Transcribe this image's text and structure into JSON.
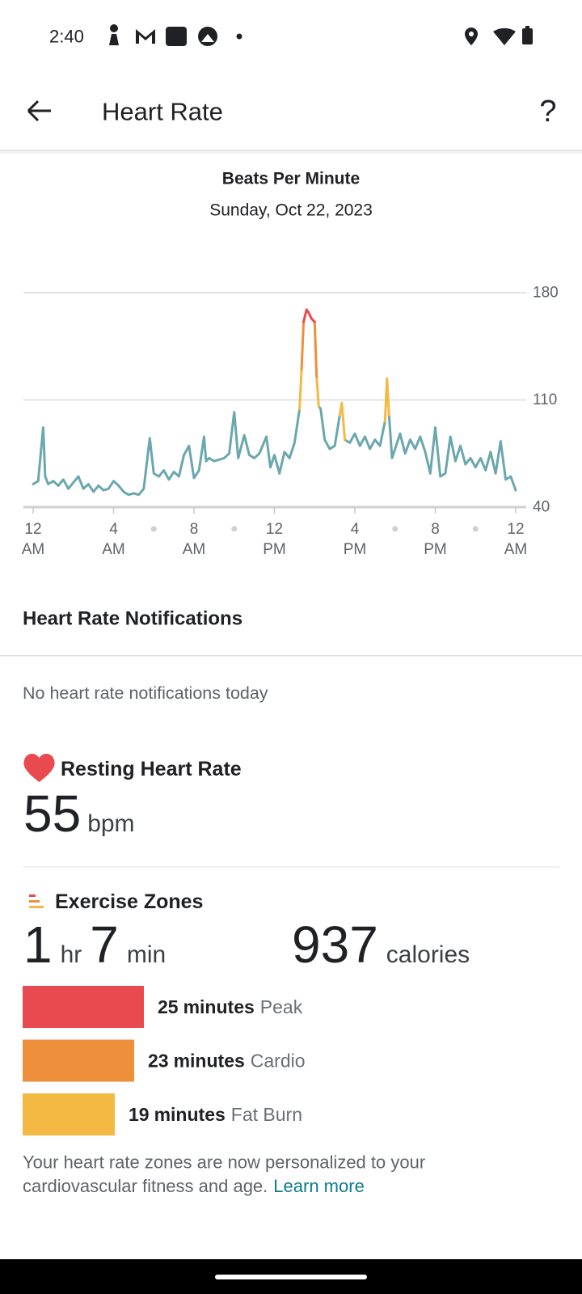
{
  "status_bar": {
    "time": "2:40"
  },
  "app_bar": {
    "title": "Heart Rate",
    "help": "?"
  },
  "chart_data": {
    "type": "line",
    "title": "Beats Per Minute",
    "subtitle": "Sunday, Oct 22, 2023",
    "x": [
      0,
      0.25,
      0.5,
      0.6,
      0.75,
      1,
      1.25,
      1.5,
      1.75,
      2,
      2.25,
      2.5,
      2.75,
      3,
      3.25,
      3.5,
      3.75,
      4,
      4.25,
      4.5,
      4.75,
      5,
      5.25,
      5.5,
      5.8,
      6,
      6.25,
      6.5,
      6.75,
      7,
      7.25,
      7.5,
      7.75,
      8,
      8.25,
      8.5,
      8.6,
      8.75,
      9,
      9.25,
      9.5,
      9.75,
      10,
      10.2,
      10.5,
      10.75,
      11,
      11.25,
      11.6,
      11.8,
      12,
      12.25,
      12.5,
      12.75,
      13,
      13.25,
      13.35,
      13.45,
      13.6,
      13.7,
      13.85,
      14,
      14.1,
      14.2,
      14.3,
      14.5,
      14.75,
      15,
      15.25,
      15.35,
      15.5,
      15.75,
      16,
      16.25,
      16.5,
      16.75,
      17,
      17.25,
      17.5,
      17.6,
      17.7,
      17.85,
      18,
      18.25,
      18.5,
      18.75,
      19,
      19.25,
      19.5,
      19.75,
      20,
      20.25,
      20.5,
      20.75,
      21,
      21.25,
      21.5,
      21.75,
      22,
      22.25,
      22.5,
      22.75,
      23,
      23.25,
      23.5,
      23.75,
      24
    ],
    "series": [
      {
        "color": "#6aa7ae",
        "values": [
          55,
          57,
          92,
          60,
          55,
          57,
          54,
          58,
          52,
          56,
          60,
          52,
          55,
          50,
          54,
          51,
          52,
          57,
          54,
          50,
          48,
          49,
          48,
          52,
          85,
          62,
          60,
          64,
          58,
          63,
          60,
          74,
          80,
          59,
          64,
          86,
          70,
          72,
          70,
          71,
          72,
          75,
          102,
          72,
          87,
          74,
          72,
          75,
          86,
          66,
          74,
          62,
          76,
          72,
          82,
          104,
          null,
          null,
          null,
          null,
          null,
          null,
          null,
          106,
          104,
          84,
          78,
          80,
          100,
          null,
          84,
          82,
          88,
          80,
          86,
          78,
          84,
          80,
          96,
          null,
          100,
          72,
          78,
          88,
          75,
          84,
          78,
          86,
          76,
          62,
          92,
          60,
          62,
          86,
          70,
          80,
          68,
          72,
          66,
          72,
          64,
          76,
          62,
          83,
          58,
          60,
          51
        ]
      },
      {
        "color": "#f4b942",
        "values": [
          null,
          null,
          null,
          null,
          null,
          null,
          null,
          null,
          null,
          null,
          null,
          null,
          null,
          null,
          null,
          null,
          null,
          null,
          null,
          null,
          null,
          null,
          null,
          null,
          null,
          null,
          null,
          null,
          null,
          null,
          null,
          null,
          null,
          null,
          null,
          null,
          null,
          null,
          null,
          null,
          null,
          null,
          null,
          null,
          null,
          null,
          null,
          null,
          null,
          null,
          null,
          null,
          null,
          null,
          null,
          104,
          130,
          null,
          null,
          null,
          null,
          null,
          125,
          106,
          null,
          null,
          null,
          null,
          100,
          108,
          84,
          null,
          null,
          null,
          null,
          null,
          null,
          null,
          96,
          124,
          100,
          null,
          null,
          null,
          null,
          null,
          null,
          null,
          null,
          null,
          null,
          null,
          null,
          null,
          null,
          null,
          null,
          null,
          null,
          null,
          null,
          null,
          null,
          null,
          null,
          null,
          null
        ]
      },
      {
        "color": "#ee8f3c",
        "values": [
          null,
          null,
          null,
          null,
          null,
          null,
          null,
          null,
          null,
          null,
          null,
          null,
          null,
          null,
          null,
          null,
          null,
          null,
          null,
          null,
          null,
          null,
          null,
          null,
          null,
          null,
          null,
          null,
          null,
          null,
          null,
          null,
          null,
          null,
          null,
          null,
          null,
          null,
          null,
          null,
          null,
          null,
          null,
          null,
          null,
          null,
          null,
          null,
          null,
          null,
          null,
          null,
          null,
          null,
          null,
          null,
          130,
          161,
          null,
          null,
          null,
          161,
          125,
          null,
          null,
          null,
          null,
          null,
          null,
          null,
          null,
          null,
          null,
          null,
          null,
          null,
          null,
          null,
          null,
          null,
          null,
          null,
          null,
          null,
          null,
          null,
          null,
          null,
          null,
          null,
          null,
          null,
          null,
          null,
          null,
          null,
          null,
          null,
          null,
          null,
          null,
          null,
          null,
          null,
          null,
          null,
          null
        ]
      },
      {
        "color": "#e84a50",
        "values": [
          null,
          null,
          null,
          null,
          null,
          null,
          null,
          null,
          null,
          null,
          null,
          null,
          null,
          null,
          null,
          null,
          null,
          null,
          null,
          null,
          null,
          null,
          null,
          null,
          null,
          null,
          null,
          null,
          null,
          null,
          null,
          null,
          null,
          null,
          null,
          null,
          null,
          null,
          null,
          null,
          null,
          null,
          null,
          null,
          null,
          null,
          null,
          null,
          null,
          null,
          null,
          null,
          null,
          null,
          null,
          null,
          null,
          161,
          169,
          167,
          163,
          161,
          null,
          null,
          null,
          null,
          null,
          null,
          null,
          null,
          null,
          null,
          null,
          null,
          null,
          null,
          null,
          null,
          null,
          null,
          null,
          null,
          null,
          null,
          null,
          null,
          null,
          null,
          null,
          null,
          null,
          null,
          null,
          null,
          null,
          null,
          null,
          null,
          null,
          null,
          null,
          null,
          null,
          null,
          null,
          null,
          null
        ]
      }
    ],
    "xlim": [
      0,
      24
    ],
    "xticks": [
      {
        "value": 0,
        "label": "12 AM"
      },
      {
        "value": 4,
        "label": "4 AM"
      },
      {
        "value": 8,
        "label": "8 AM"
      },
      {
        "value": 12,
        "label": "12 PM"
      },
      {
        "value": 16,
        "label": "4 PM"
      },
      {
        "value": 20,
        "label": "8 PM"
      },
      {
        "value": 24,
        "label": "12 AM"
      }
    ],
    "minor_xticks": [
      6,
      10,
      18,
      22
    ],
    "ylim": [
      40,
      180
    ],
    "yticks": [
      40,
      110,
      180
    ],
    "grid": true
  },
  "notifications": {
    "title": "Heart Rate Notifications",
    "empty": "No heart rate notifications today"
  },
  "resting_heart_rate": {
    "title": "Resting Heart Rate",
    "value": 55,
    "unit": "bpm"
  },
  "exercise_zones": {
    "title": "Exercise Zones",
    "hours": 1,
    "hours_unit": "hr",
    "minutes": 7,
    "minutes_unit": "min",
    "calories": 937,
    "calories_unit": "calories",
    "zones": [
      {
        "minutes": 25,
        "unit": "minutes",
        "name": "Peak",
        "color": "#e84a50"
      },
      {
        "minutes": 23,
        "unit": "minutes",
        "name": "Cardio",
        "color": "#ee8f3c"
      },
      {
        "minutes": 19,
        "unit": "minutes",
        "name": "Fat Burn",
        "color": "#f4b942"
      }
    ],
    "note_lines": [
      "Your heart rate zones are now personalized to your",
      "cardiovascular fitness and age."
    ],
    "link": "Learn more"
  }
}
